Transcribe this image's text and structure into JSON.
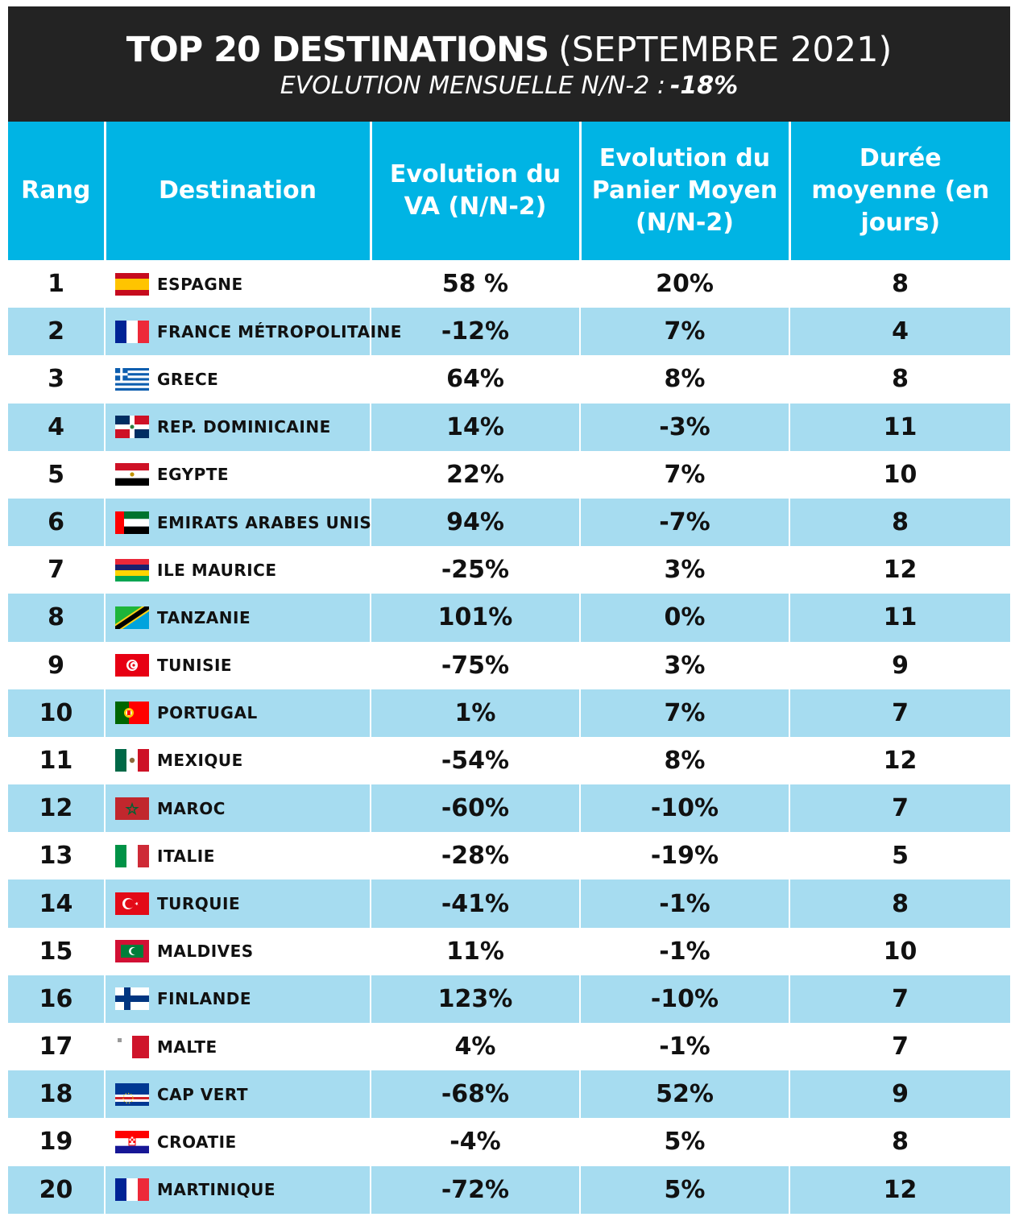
{
  "header": {
    "title_bold": "TOP 20 DESTINATIONS",
    "title_rest": "(SEPTEMBRE 2021)",
    "subtitle_label": "EVOLUTION MENSUELLE N/N-2 :",
    "subtitle_value": "-18%"
  },
  "table": {
    "columns": [
      "Rang",
      "Destination",
      "Evolution du VA (N/N-2)",
      "Evolution du Panier Moyen (N/N-2)",
      "Durée moyenne (en jours)"
    ],
    "rows": [
      {
        "rank": "1",
        "destination": "ESPAGNE",
        "flag": "spain-flag",
        "va": "58 %",
        "panier": "20%",
        "duree": "8"
      },
      {
        "rank": "2",
        "destination": "FRANCE MÉTROPOLITAINE",
        "flag": "france-flag",
        "va": "-12%",
        "panier": "7%",
        "duree": "4"
      },
      {
        "rank": "3",
        "destination": "GRECE",
        "flag": "greece-flag",
        "va": "64%",
        "panier": "8%",
        "duree": "8"
      },
      {
        "rank": "4",
        "destination": "REP. DOMINICAINE",
        "flag": "dominican-republic-flag",
        "va": "14%",
        "panier": "-3%",
        "duree": "11"
      },
      {
        "rank": "5",
        "destination": "EGYPTE",
        "flag": "egypt-flag",
        "va": "22%",
        "panier": "7%",
        "duree": "10"
      },
      {
        "rank": "6",
        "destination": "EMIRATS ARABES UNIS",
        "flag": "uae-flag",
        "va": "94%",
        "panier": "-7%",
        "duree": "8"
      },
      {
        "rank": "7",
        "destination": "ILE MAURICE",
        "flag": "mauritius-flag",
        "va": "-25%",
        "panier": "3%",
        "duree": "12"
      },
      {
        "rank": "8",
        "destination": "TANZANIE",
        "flag": "tanzania-flag",
        "va": "101%",
        "panier": "0%",
        "duree": "11"
      },
      {
        "rank": "9",
        "destination": "TUNISIE",
        "flag": "tunisia-flag",
        "va": "-75%",
        "panier": "3%",
        "duree": "9"
      },
      {
        "rank": "10",
        "destination": "PORTUGAL",
        "flag": "portugal-flag",
        "va": "1%",
        "panier": "7%",
        "duree": "7"
      },
      {
        "rank": "11",
        "destination": "MEXIQUE",
        "flag": "mexico-flag",
        "va": "-54%",
        "panier": "8%",
        "duree": "12"
      },
      {
        "rank": "12",
        "destination": "MAROC",
        "flag": "morocco-flag",
        "va": "-60%",
        "panier": "-10%",
        "duree": "7"
      },
      {
        "rank": "13",
        "destination": "ITALIE",
        "flag": "italy-flag",
        "va": "-28%",
        "panier": "-19%",
        "duree": "5"
      },
      {
        "rank": "14",
        "destination": "TURQUIE",
        "flag": "turkey-flag",
        "va": "-41%",
        "panier": "-1%",
        "duree": "8"
      },
      {
        "rank": "15",
        "destination": "MALDIVES",
        "flag": "maldives-flag",
        "va": "11%",
        "panier": "-1%",
        "duree": "10"
      },
      {
        "rank": "16",
        "destination": "FINLANDE",
        "flag": "finland-flag",
        "va": "123%",
        "panier": "-10%",
        "duree": "7"
      },
      {
        "rank": "17",
        "destination": "MALTE",
        "flag": "malta-flag",
        "va": "4%",
        "panier": "-1%",
        "duree": "7"
      },
      {
        "rank": "18",
        "destination": "CAP VERT",
        "flag": "cape-verde-flag",
        "va": "-68%",
        "panier": "52%",
        "duree": "9"
      },
      {
        "rank": "19",
        "destination": "CROATIE",
        "flag": "croatia-flag",
        "va": "-4%",
        "panier": "5%",
        "duree": "8"
      },
      {
        "rank": "20",
        "destination": "MARTINIQUE",
        "flag": "france-flag",
        "va": "-72%",
        "panier": "5%",
        "duree": "12"
      }
    ]
  },
  "colors": {
    "banner": "#232323",
    "header": "#00b4e4",
    "stripe": "#a6dcf0"
  }
}
